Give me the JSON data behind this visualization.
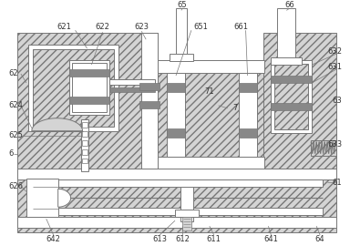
{
  "fig_width": 3.84,
  "fig_height": 2.7,
  "dpi": 100,
  "lc": "#777777",
  "lw": 0.7,
  "hatch_fc": "#d4d4d4",
  "white": "#ffffff",
  "gray": "#aaaaaa",
  "darkgray": "#888888"
}
